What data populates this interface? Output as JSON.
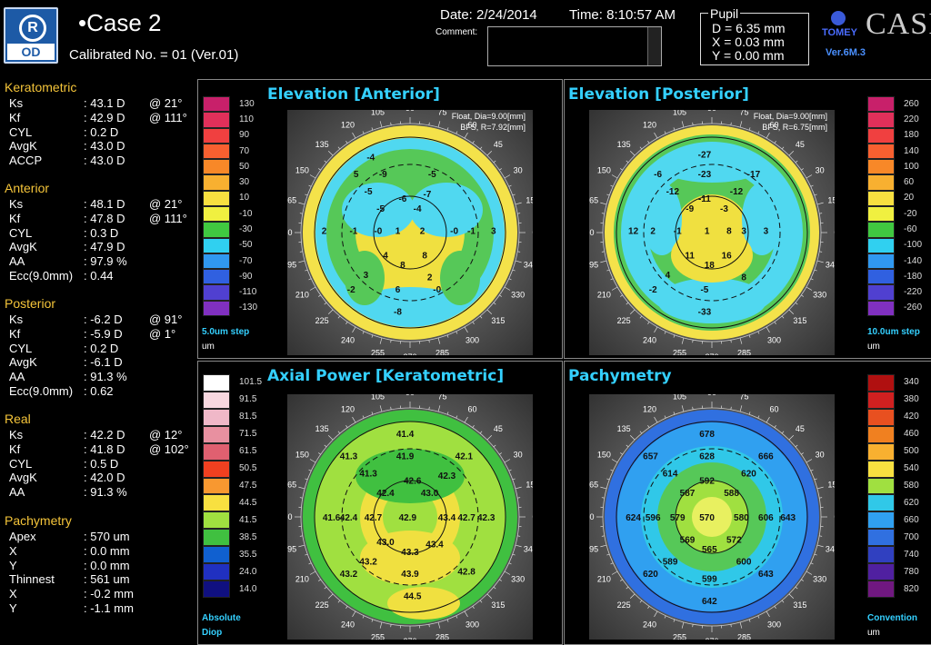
{
  "header": {
    "eye_r": "R",
    "eye_od": "OD",
    "case_name": "•Case 2",
    "calibrated": "Calibrated No. = 01 (Ver.01)",
    "date_label": "Date: 2/24/2014",
    "time_label": "Time: 8:10:57 AM",
    "comment_label": "Comment:",
    "comment_value": "",
    "pupil": {
      "title": "Pupil",
      "d": "D = 6.35 mm",
      "x": "X = 0.03 mm",
      "y": "Y = 0.00 mm"
    },
    "brand": "TOMEY",
    "product": "CASIA",
    "version": "Ver.6M.3"
  },
  "sidebar": {
    "keratometric": {
      "title": "Keratometric",
      "rows": [
        {
          "k": "Ks",
          "v": ": 43.1 D",
          "a": "@ 21°"
        },
        {
          "k": "Kf",
          "v": ": 42.9 D",
          "a": "@ 111°"
        },
        {
          "k": "CYL",
          "v": ":  0.2 D",
          "a": ""
        },
        {
          "k": "AvgK",
          "v": ": 43.0 D",
          "a": ""
        },
        {
          "k": "ACCP",
          "v": ": 43.0 D",
          "a": ""
        }
      ]
    },
    "anterior": {
      "title": "Anterior",
      "rows": [
        {
          "k": "Ks",
          "v": ": 48.1 D",
          "a": "@ 21°"
        },
        {
          "k": "Kf",
          "v": ": 47.8 D",
          "a": "@ 111°"
        },
        {
          "k": "CYL",
          "v": ":  0.3 D",
          "a": ""
        },
        {
          "k": "AvgK",
          "v": ": 47.9 D",
          "a": ""
        },
        {
          "k": "AA",
          "v": ": 97.9 %",
          "a": ""
        },
        {
          "k": "Ecc(9.0mm)",
          "v": ": 0.44",
          "a": ""
        }
      ]
    },
    "posterior": {
      "title": "Posterior",
      "rows": [
        {
          "k": "Ks",
          "v": ":  -6.2 D",
          "a": "@ 91°"
        },
        {
          "k": "Kf",
          "v": ":  -5.9 D",
          "a": "@ 1°"
        },
        {
          "k": "CYL",
          "v": ":  0.2 D",
          "a": ""
        },
        {
          "k": "AvgK",
          "v": ":  -6.1 D",
          "a": ""
        },
        {
          "k": "AA",
          "v": ": 91.3 %",
          "a": ""
        },
        {
          "k": "Ecc(9.0mm)",
          "v": ": 0.62",
          "a": ""
        }
      ]
    },
    "real": {
      "title": "Real",
      "rows": [
        {
          "k": "Ks",
          "v": ": 42.2 D",
          "a": "@ 12°"
        },
        {
          "k": "Kf",
          "v": ": 41.8 D",
          "a": "@ 102°"
        },
        {
          "k": "CYL",
          "v": ":  0.5 D",
          "a": ""
        },
        {
          "k": "AvgK",
          "v": ": 42.0 D",
          "a": ""
        },
        {
          "k": "AA",
          "v": ": 91.3 %",
          "a": ""
        }
      ]
    },
    "pachymetry": {
      "title": "Pachymetry",
      "rows": [
        {
          "k": "Apex",
          "v": ": 570 um",
          "a": ""
        },
        {
          "k": " X",
          "v": ":   0.0 mm",
          "a": ""
        },
        {
          "k": " Y",
          "v": ":   0.0 mm",
          "a": ""
        },
        {
          "k": "Thinnest",
          "v": ": 561 um",
          "a": ""
        },
        {
          "k": " X",
          "v": ":  -0.2 mm",
          "a": ""
        },
        {
          "k": " Y",
          "v": ":  -1.1 mm",
          "a": ""
        }
      ]
    }
  },
  "panels": {
    "ant": {
      "title": "Elevation [Anterior]",
      "info1": "Float, Dia=9.00[mm]",
      "info2": "BFS, R=7.92[mm]",
      "step": "5.0um step",
      "unit": "um",
      "scale_ticks": [
        "130",
        "110",
        "90",
        "70",
        "50",
        "30",
        "10",
        "-10",
        "-30",
        "-50",
        "-70",
        "-90",
        "-110",
        "-130"
      ],
      "scale_colors": [
        "#c8206a",
        "#e0305a",
        "#f04040",
        "#f86030",
        "#f88828",
        "#f8b030",
        "#f8e040",
        "#f0f040",
        "#40c840",
        "#30d0f0",
        "#3098f0",
        "#3060e0",
        "#5040d0",
        "#8030c0"
      ],
      "values": [
        {
          "t": "-4",
          "x": 0.34,
          "y": 0.19
        },
        {
          "t": "5",
          "x": 0.28,
          "y": 0.26
        },
        {
          "t": "-9",
          "x": 0.39,
          "y": 0.26
        },
        {
          "t": "-5",
          "x": 0.59,
          "y": 0.26
        },
        {
          "t": "-5",
          "x": 0.33,
          "y": 0.33
        },
        {
          "t": "-6",
          "x": 0.47,
          "y": 0.36
        },
        {
          "t": "-7",
          "x": 0.57,
          "y": 0.34
        },
        {
          "t": "-5",
          "x": 0.38,
          "y": 0.4
        },
        {
          "t": "-4",
          "x": 0.53,
          "y": 0.4
        },
        {
          "t": "-1",
          "x": 0.27,
          "y": 0.49
        },
        {
          "t": "-0",
          "x": 0.37,
          "y": 0.49
        },
        {
          "t": "1",
          "x": 0.45,
          "y": 0.49
        },
        {
          "t": "2",
          "x": 0.55,
          "y": 0.49
        },
        {
          "t": "-0",
          "x": 0.68,
          "y": 0.49
        },
        {
          "t": "-1",
          "x": 0.75,
          "y": 0.49
        },
        {
          "t": "2",
          "x": 0.15,
          "y": 0.49
        },
        {
          "t": "3",
          "x": 0.84,
          "y": 0.49
        },
        {
          "t": "4",
          "x": 0.4,
          "y": 0.59
        },
        {
          "t": "8",
          "x": 0.56,
          "y": 0.59
        },
        {
          "t": "8",
          "x": 0.47,
          "y": 0.63
        },
        {
          "t": "3",
          "x": 0.32,
          "y": 0.67
        },
        {
          "t": "2",
          "x": 0.58,
          "y": 0.68
        },
        {
          "t": "6",
          "x": 0.45,
          "y": 0.73
        },
        {
          "t": "-0",
          "x": 0.61,
          "y": 0.73
        },
        {
          "t": "-2",
          "x": 0.26,
          "y": 0.73
        },
        {
          "t": "-8",
          "x": 0.45,
          "y": 0.82
        }
      ]
    },
    "post": {
      "title": "Elevation [Posterior]",
      "info1": "Float, Dia=9.00[mm]",
      "info2": "BFS, R=6.75[mm]",
      "step": "10.0um step",
      "unit": "um",
      "scale_ticks": [
        "260",
        "220",
        "180",
        "140",
        "100",
        "60",
        "20",
        "-20",
        "-60",
        "-100",
        "-140",
        "-180",
        "-220",
        "-260"
      ],
      "scale_colors": [
        "#c8206a",
        "#e0305a",
        "#f04040",
        "#f86030",
        "#f88828",
        "#f8b030",
        "#f8e040",
        "#f0f040",
        "#40c840",
        "#30d0f0",
        "#3098f0",
        "#3060e0",
        "#5040d0",
        "#8030c0"
      ],
      "values": [
        {
          "t": "-27",
          "x": 0.47,
          "y": 0.18
        },
        {
          "t": "-6",
          "x": 0.28,
          "y": 0.26
        },
        {
          "t": "-23",
          "x": 0.47,
          "y": 0.26
        },
        {
          "t": "-17",
          "x": 0.67,
          "y": 0.26
        },
        {
          "t": "-12",
          "x": 0.34,
          "y": 0.33
        },
        {
          "t": "-11",
          "x": 0.47,
          "y": 0.36
        },
        {
          "t": "-12",
          "x": 0.6,
          "y": 0.33
        },
        {
          "t": "-9",
          "x": 0.41,
          "y": 0.4
        },
        {
          "t": "-3",
          "x": 0.55,
          "y": 0.4
        },
        {
          "t": "12",
          "x": 0.18,
          "y": 0.49
        },
        {
          "t": "2",
          "x": 0.26,
          "y": 0.49
        },
        {
          "t": "-1",
          "x": 0.36,
          "y": 0.49
        },
        {
          "t": "1",
          "x": 0.48,
          "y": 0.49
        },
        {
          "t": "8",
          "x": 0.57,
          "y": 0.49
        },
        {
          "t": "3",
          "x": 0.63,
          "y": 0.49
        },
        {
          "t": "3",
          "x": 0.72,
          "y": 0.49
        },
        {
          "t": "11",
          "x": 0.41,
          "y": 0.59
        },
        {
          "t": "16",
          "x": 0.56,
          "y": 0.59
        },
        {
          "t": "18",
          "x": 0.49,
          "y": 0.63
        },
        {
          "t": "4",
          "x": 0.32,
          "y": 0.67
        },
        {
          "t": "8",
          "x": 0.63,
          "y": 0.68
        },
        {
          "t": "-2",
          "x": 0.26,
          "y": 0.73
        },
        {
          "t": "-5",
          "x": 0.47,
          "y": 0.73
        },
        {
          "t": "-33",
          "x": 0.47,
          "y": 0.82
        }
      ]
    },
    "axial": {
      "title": "Axial Power [Keratometric]",
      "step": "Absolute",
      "unit": "Diop",
      "scale_ticks": [
        "101.5",
        "91.5",
        "81.5",
        "71.5",
        "61.5",
        "50.5",
        "47.5",
        "44.5",
        "41.5",
        "38.5",
        "35.5",
        "24.0",
        "14.0"
      ],
      "scale_colors": [
        "#ffffff",
        "#f8d8e0",
        "#f0b8c8",
        "#e890a0",
        "#e06070",
        "#f04020",
        "#f89830",
        "#f8e040",
        "#a0e040",
        "#40c040",
        "#1060d0",
        "#2030c0",
        "#101080"
      ],
      "values": [
        {
          "t": "41.4",
          "x": 0.48,
          "y": 0.16
        },
        {
          "t": "41.3",
          "x": 0.25,
          "y": 0.25
        },
        {
          "t": "41.9",
          "x": 0.48,
          "y": 0.25
        },
        {
          "t": "42.1",
          "x": 0.72,
          "y": 0.25
        },
        {
          "t": "41.3",
          "x": 0.33,
          "y": 0.32
        },
        {
          "t": "42.6",
          "x": 0.51,
          "y": 0.35
        },
        {
          "t": "42.3",
          "x": 0.65,
          "y": 0.33
        },
        {
          "t": "42.4",
          "x": 0.4,
          "y": 0.4
        },
        {
          "t": "43.0",
          "x": 0.58,
          "y": 0.4
        },
        {
          "t": "41.6",
          "x": 0.18,
          "y": 0.5
        },
        {
          "t": "42.4",
          "x": 0.25,
          "y": 0.5
        },
        {
          "t": "42.7",
          "x": 0.35,
          "y": 0.5
        },
        {
          "t": "42.9",
          "x": 0.49,
          "y": 0.5
        },
        {
          "t": "43.4",
          "x": 0.65,
          "y": 0.5
        },
        {
          "t": "42.7",
          "x": 0.73,
          "y": 0.5
        },
        {
          "t": "42.3",
          "x": 0.81,
          "y": 0.5
        },
        {
          "t": "43.0",
          "x": 0.4,
          "y": 0.6
        },
        {
          "t": "43.4",
          "x": 0.6,
          "y": 0.61
        },
        {
          "t": "43.3",
          "x": 0.5,
          "y": 0.64
        },
        {
          "t": "43.2",
          "x": 0.33,
          "y": 0.68
        },
        {
          "t": "42.8",
          "x": 0.73,
          "y": 0.72
        },
        {
          "t": "43.2",
          "x": 0.25,
          "y": 0.73
        },
        {
          "t": "43.9",
          "x": 0.5,
          "y": 0.73
        },
        {
          "t": "44.5",
          "x": 0.51,
          "y": 0.82
        }
      ]
    },
    "pachy": {
      "title": "Pachymetry",
      "step": "Convention",
      "unit": "um",
      "scale_ticks": [
        "340",
        "380",
        "420",
        "460",
        "500",
        "540",
        "580",
        "620",
        "660",
        "700",
        "740",
        "780",
        "820"
      ],
      "scale_colors": [
        "#b01010",
        "#d02020",
        "#e85020",
        "#f08020",
        "#f8b030",
        "#f8e040",
        "#a0e040",
        "#30c8e8",
        "#30a0f0",
        "#3070e0",
        "#3040c0",
        "#5020a0",
        "#701880"
      ],
      "values": [
        {
          "t": "678",
          "x": 0.48,
          "y": 0.16
        },
        {
          "t": "657",
          "x": 0.25,
          "y": 0.25
        },
        {
          "t": "628",
          "x": 0.48,
          "y": 0.25
        },
        {
          "t": "666",
          "x": 0.72,
          "y": 0.25
        },
        {
          "t": "614",
          "x": 0.33,
          "y": 0.32
        },
        {
          "t": "592",
          "x": 0.48,
          "y": 0.35
        },
        {
          "t": "620",
          "x": 0.65,
          "y": 0.32
        },
        {
          "t": "587",
          "x": 0.4,
          "y": 0.4
        },
        {
          "t": "588",
          "x": 0.58,
          "y": 0.4
        },
        {
          "t": "624",
          "x": 0.18,
          "y": 0.5
        },
        {
          "t": "596",
          "x": 0.26,
          "y": 0.5
        },
        {
          "t": "579",
          "x": 0.36,
          "y": 0.5
        },
        {
          "t": "570",
          "x": 0.48,
          "y": 0.5
        },
        {
          "t": "580",
          "x": 0.62,
          "y": 0.5
        },
        {
          "t": "606",
          "x": 0.72,
          "y": 0.5
        },
        {
          "t": "643",
          "x": 0.81,
          "y": 0.5
        },
        {
          "t": "569",
          "x": 0.4,
          "y": 0.59
        },
        {
          "t": "572",
          "x": 0.59,
          "y": 0.59
        },
        {
          "t": "565",
          "x": 0.49,
          "y": 0.63
        },
        {
          "t": "589",
          "x": 0.33,
          "y": 0.68
        },
        {
          "t": "600",
          "x": 0.63,
          "y": 0.68
        },
        {
          "t": "620",
          "x": 0.25,
          "y": 0.73
        },
        {
          "t": "599",
          "x": 0.49,
          "y": 0.75
        },
        {
          "t": "643",
          "x": 0.72,
          "y": 0.73
        },
        {
          "t": "642",
          "x": 0.49,
          "y": 0.84
        }
      ]
    }
  },
  "angles": [
    "105",
    "90",
    "75",
    "120",
    "60",
    "135",
    "45",
    "150",
    "30",
    "165",
    "15",
    "180",
    "0",
    "195",
    "345",
    "210",
    "330",
    "225",
    "315",
    "240",
    "300",
    "255",
    "270",
    "285"
  ]
}
